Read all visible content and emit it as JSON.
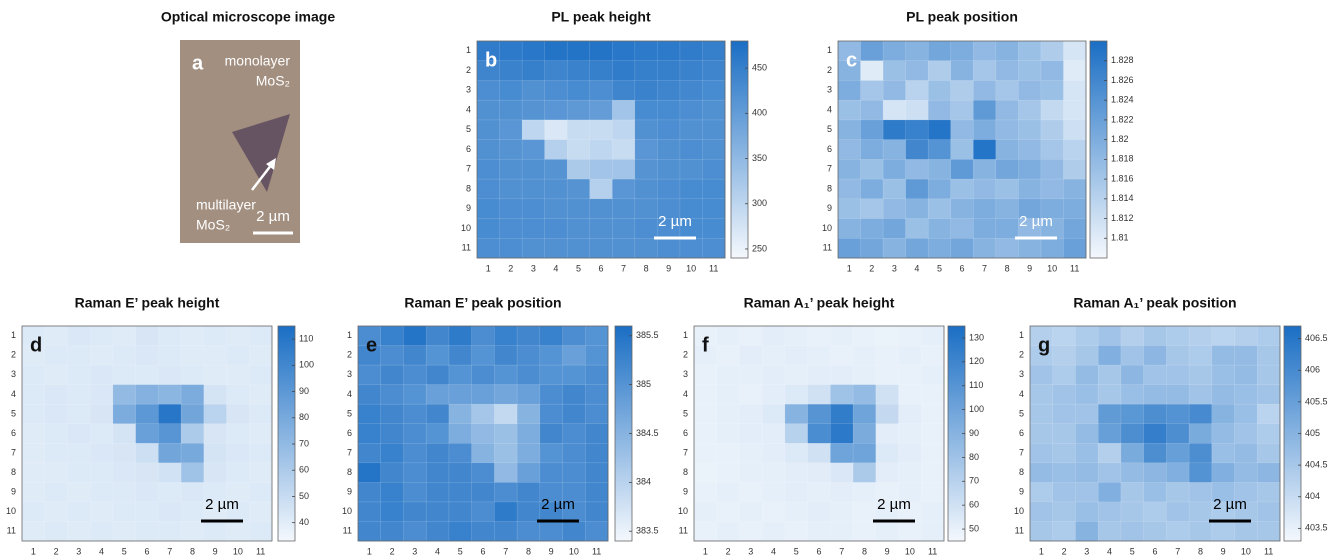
{
  "chart_data": [
    {
      "type": "image",
      "title": "Optical microscope image",
      "panel_label": "a",
      "annotations": [
        "monolayer",
        "MoS₂",
        "multilayer",
        "MoS₂"
      ],
      "scale_bar_label": "2 µm",
      "scale_bar_color": "#ffffff"
    },
    {
      "type": "heatmap",
      "title": "PL peak height",
      "panel_label": "b",
      "scale_bar_label": "2 µm",
      "scale_bar_color": "#ffffff",
      "colormap": [
        "#f4f8fd",
        "#1a6ec4"
      ],
      "x": [
        1,
        2,
        3,
        4,
        5,
        6,
        7,
        8,
        9,
        10,
        11
      ],
      "y": [
        1,
        2,
        3,
        4,
        5,
        6,
        7,
        8,
        9,
        10,
        11
      ],
      "zlim": [
        240,
        480
      ],
      "zticks": [
        250,
        300,
        350,
        400,
        450
      ],
      "z": [
        [
          455,
          460,
          465,
          470,
          470,
          470,
          465,
          460,
          460,
          455,
          450
        ],
        [
          440,
          445,
          450,
          440,
          445,
          450,
          455,
          450,
          450,
          445,
          440
        ],
        [
          425,
          430,
          420,
          425,
          430,
          425,
          440,
          445,
          440,
          435,
          430
        ],
        [
          420,
          420,
          415,
          410,
          405,
          400,
          330,
          430,
          430,
          425,
          420
        ],
        [
          420,
          410,
          300,
          270,
          290,
          290,
          300,
          420,
          425,
          420,
          420
        ],
        [
          420,
          415,
          410,
          310,
          290,
          300,
          290,
          410,
          420,
          425,
          420
        ],
        [
          425,
          420,
          420,
          415,
          320,
          330,
          330,
          415,
          420,
          420,
          425
        ],
        [
          425,
          420,
          420,
          420,
          415,
          310,
          410,
          420,
          425,
          430,
          430
        ],
        [
          430,
          425,
          425,
          420,
          420,
          420,
          420,
          420,
          425,
          430,
          430
        ],
        [
          430,
          425,
          425,
          425,
          420,
          420,
          420,
          425,
          425,
          430,
          430
        ],
        [
          425,
          425,
          420,
          420,
          420,
          420,
          420,
          420,
          425,
          425,
          425
        ]
      ]
    },
    {
      "type": "heatmap",
      "title": "PL peak position",
      "panel_label": "c",
      "scale_bar_label": "2 µm",
      "scale_bar_color": "#ffffff",
      "colormap": [
        "#f4f8fd",
        "#1a6ec4"
      ],
      "x": [
        1,
        2,
        3,
        4,
        5,
        6,
        7,
        8,
        9,
        10,
        11
      ],
      "y": [
        1,
        2,
        3,
        4,
        5,
        6,
        7,
        8,
        9,
        10,
        11
      ],
      "zlim": [
        1.808,
        1.83
      ],
      "zticks": [
        1.81,
        1.812,
        1.814,
        1.816,
        1.818,
        1.82,
        1.822,
        1.824,
        1.826,
        1.828
      ],
      "z": [
        [
          1.818,
          1.822,
          1.82,
          1.819,
          1.821,
          1.82,
          1.818,
          1.819,
          1.817,
          1.815,
          1.811
        ],
        [
          1.819,
          1.81,
          1.817,
          1.818,
          1.815,
          1.819,
          1.816,
          1.818,
          1.817,
          1.818,
          1.81
        ],
        [
          1.82,
          1.816,
          1.818,
          1.814,
          1.817,
          1.815,
          1.818,
          1.816,
          1.818,
          1.817,
          1.811
        ],
        [
          1.817,
          1.818,
          1.811,
          1.812,
          1.818,
          1.816,
          1.823,
          1.818,
          1.816,
          1.813,
          1.811
        ],
        [
          1.819,
          1.822,
          1.828,
          1.827,
          1.829,
          1.818,
          1.82,
          1.818,
          1.817,
          1.815,
          1.812
        ],
        [
          1.818,
          1.82,
          1.819,
          1.826,
          1.824,
          1.817,
          1.829,
          1.819,
          1.818,
          1.816,
          1.814
        ],
        [
          1.819,
          1.817,
          1.82,
          1.818,
          1.819,
          1.823,
          1.819,
          1.821,
          1.82,
          1.818,
          1.815
        ],
        [
          1.818,
          1.82,
          1.817,
          1.823,
          1.82,
          1.817,
          1.818,
          1.817,
          1.819,
          1.818,
          1.819
        ],
        [
          1.817,
          1.816,
          1.818,
          1.819,
          1.817,
          1.819,
          1.82,
          1.819,
          1.821,
          1.82,
          1.82
        ],
        [
          1.819,
          1.82,
          1.821,
          1.817,
          1.819,
          1.818,
          1.82,
          1.82,
          1.818,
          1.819,
          1.821
        ],
        [
          1.822,
          1.821,
          1.819,
          1.821,
          1.82,
          1.821,
          1.819,
          1.818,
          1.819,
          1.82,
          1.822
        ]
      ]
    },
    {
      "type": "heatmap",
      "title": "Raman E’ peak height",
      "panel_label": "d",
      "scale_bar_label": "2 µm",
      "scale_bar_color": "#000000",
      "colormap": [
        "#f4f8fd",
        "#1a6ec4"
      ],
      "x": [
        1,
        2,
        3,
        4,
        5,
        6,
        7,
        8,
        9,
        10,
        11
      ],
      "y": [
        1,
        2,
        3,
        4,
        5,
        6,
        7,
        8,
        9,
        10,
        11
      ],
      "zlim": [
        33,
        115
      ],
      "zticks": [
        40,
        50,
        60,
        70,
        80,
        90,
        100,
        110
      ],
      "z": [
        [
          42,
          41,
          43,
          42,
          41,
          44,
          42,
          41,
          42,
          41,
          42
        ],
        [
          41,
          42,
          42,
          41,
          42,
          43,
          42,
          41,
          41,
          42,
          41
        ],
        [
          42,
          41,
          42,
          43,
          42,
          42,
          43,
          42,
          41,
          41,
          42
        ],
        [
          42,
          43,
          42,
          43,
          70,
          75,
          72,
          78,
          45,
          42,
          41
        ],
        [
          42,
          43,
          42,
          44,
          78,
          90,
          110,
          82,
          55,
          44,
          42
        ],
        [
          41,
          42,
          43,
          42,
          45,
          85,
          92,
          60,
          44,
          42,
          41
        ],
        [
          41,
          42,
          42,
          43,
          44,
          48,
          82,
          80,
          45,
          43,
          42
        ],
        [
          41,
          41,
          42,
          42,
          43,
          44,
          46,
          65,
          44,
          42,
          41
        ],
        [
          41,
          42,
          41,
          42,
          42,
          43,
          42,
          43,
          42,
          41,
          42
        ],
        [
          42,
          41,
          42,
          41,
          42,
          42,
          43,
          42,
          41,
          42,
          41
        ],
        [
          41,
          42,
          41,
          42,
          41,
          42,
          42,
          41,
          42,
          41,
          42
        ]
      ]
    },
    {
      "type": "heatmap",
      "title": "Raman E’ peak position",
      "panel_label": "e",
      "scale_bar_label": "2 µm",
      "scale_bar_color": "#000000",
      "colormap": [
        "#f4f8fd",
        "#1a6ec4"
      ],
      "x": [
        1,
        2,
        3,
        4,
        5,
        6,
        7,
        8,
        9,
        10,
        11
      ],
      "y": [
        1,
        2,
        3,
        4,
        5,
        6,
        7,
        8,
        9,
        10,
        11
      ],
      "zlim": [
        383.4,
        385.6
      ],
      "zticks": [
        383.5,
        384,
        384.5,
        385,
        385.5
      ],
      "z": [
        [
          385.1,
          385.3,
          385.5,
          385.2,
          385.4,
          385.1,
          385.3,
          385.2,
          385.3,
          385.1,
          385.0
        ],
        [
          385.2,
          385.1,
          385.2,
          385.0,
          385.2,
          385.0,
          385.2,
          385.1,
          385.0,
          384.8,
          385.0
        ],
        [
          385.1,
          385.2,
          385.1,
          385.2,
          385.0,
          385.1,
          385.0,
          385.1,
          385.0,
          385.0,
          385.1
        ],
        [
          385.2,
          385.1,
          385.0,
          384.8,
          384.8,
          384.8,
          384.7,
          384.8,
          385.1,
          385.2,
          385.1
        ],
        [
          385.3,
          385.2,
          385.1,
          385.2,
          384.5,
          384.2,
          383.9,
          384.5,
          385.1,
          385.2,
          385.1
        ],
        [
          385.3,
          385.2,
          385.1,
          385.0,
          384.6,
          384.4,
          384.3,
          384.6,
          385.2,
          385.1,
          385.2
        ],
        [
          385.2,
          385.3,
          385.1,
          385.2,
          385.1,
          384.5,
          384.3,
          384.6,
          385.0,
          385.1,
          385.2
        ],
        [
          385.5,
          385.2,
          385.1,
          385.2,
          385.2,
          385.1,
          384.4,
          384.8,
          385.1,
          385.1,
          385.2
        ],
        [
          385.2,
          385.3,
          385.1,
          385.2,
          385.2,
          385.2,
          385.1,
          385.2,
          385.1,
          385.1,
          385.2
        ],
        [
          385.2,
          385.3,
          385.2,
          385.2,
          385.2,
          385.1,
          385.4,
          385.2,
          385.2,
          385.1,
          385.2
        ],
        [
          385.2,
          385.2,
          385.1,
          385.2,
          385.3,
          385.2,
          385.2,
          385.1,
          385.1,
          385.2,
          385.1
        ]
      ]
    },
    {
      "type": "heatmap",
      "title": "Raman A₁’ peak height",
      "panel_label": "f",
      "scale_bar_label": "2 µm",
      "scale_bar_color": "#000000",
      "colormap": [
        "#f4f8fd",
        "#1a6ec4"
      ],
      "x": [
        1,
        2,
        3,
        4,
        5,
        6,
        7,
        8,
        9,
        10,
        11
      ],
      "y": [
        1,
        2,
        3,
        4,
        5,
        6,
        7,
        8,
        9,
        10,
        11
      ],
      "zlim": [
        45,
        135
      ],
      "zticks": [
        50,
        60,
        70,
        80,
        90,
        100,
        110,
        120,
        130
      ],
      "z": [
        [
          50,
          51,
          50,
          52,
          51,
          50,
          51,
          50,
          49,
          50,
          51
        ],
        [
          51,
          50,
          52,
          51,
          52,
          51,
          50,
          51,
          50,
          51,
          50
        ],
        [
          50,
          51,
          51,
          52,
          51,
          52,
          52,
          51,
          50,
          50,
          51
        ],
        [
          50,
          51,
          50,
          52,
          55,
          60,
          80,
          85,
          60,
          50,
          50
        ],
        [
          50,
          51,
          52,
          55,
          90,
          110,
          125,
          100,
          65,
          52,
          50
        ],
        [
          50,
          51,
          52,
          52,
          70,
          115,
          128,
          95,
          52,
          51,
          50
        ],
        [
          50,
          50,
          51,
          52,
          55,
          60,
          100,
          100,
          55,
          52,
          50
        ],
        [
          49,
          50,
          51,
          51,
          52,
          53,
          56,
          75,
          52,
          51,
          50
        ],
        [
          50,
          51,
          50,
          51,
          52,
          51,
          52,
          51,
          50,
          51,
          50
        ],
        [
          51,
          50,
          51,
          50,
          51,
          52,
          51,
          50,
          51,
          50,
          51
        ],
        [
          50,
          51,
          50,
          51,
          50,
          51,
          51,
          50,
          51,
          50,
          51
        ]
      ]
    },
    {
      "type": "heatmap",
      "title": "Raman A₁’ peak position",
      "panel_label": "g",
      "scale_bar_label": "2 µm",
      "scale_bar_color": "#000000",
      "colormap": [
        "#f4f8fd",
        "#1a6ec4"
      ],
      "x": [
        1,
        2,
        3,
        4,
        5,
        6,
        7,
        8,
        9,
        10,
        11
      ],
      "y": [
        1,
        2,
        3,
        4,
        5,
        6,
        7,
        8,
        9,
        10,
        11
      ],
      "zlim": [
        403.3,
        406.7
      ],
      "zticks": [
        403.5,
        404,
        404.5,
        405,
        405.5,
        406,
        406.5
      ],
      "z": [
        [
          404.3,
          404.2,
          404.4,
          404.6,
          404.3,
          404.5,
          404.4,
          404.3,
          404.2,
          404.3,
          404.4
        ],
        [
          404.4,
          404.3,
          404.5,
          405.1,
          404.6,
          404.9,
          404.5,
          404.4,
          404.8,
          404.8,
          404.5
        ],
        [
          404.6,
          404.4,
          404.8,
          404.5,
          404.9,
          404.6,
          404.6,
          404.5,
          404.7,
          404.8,
          404.5
        ],
        [
          404.5,
          404.6,
          404.7,
          404.5,
          404.7,
          404.8,
          404.8,
          404.6,
          404.8,
          404.7,
          404.6
        ],
        [
          404.5,
          404.6,
          404.6,
          405.6,
          405.7,
          405.9,
          405.8,
          406.0,
          405.0,
          404.7,
          404.2
        ],
        [
          404.5,
          404.5,
          404.8,
          405.5,
          405.9,
          406.3,
          405.9,
          405.2,
          404.8,
          404.6,
          404.4
        ],
        [
          404.6,
          404.5,
          404.7,
          404.3,
          405.2,
          405.9,
          405.5,
          405.9,
          404.7,
          404.8,
          404.5
        ],
        [
          404.8,
          404.7,
          404.8,
          404.6,
          404.8,
          404.9,
          405.1,
          405.8,
          405.1,
          404.8,
          404.9
        ],
        [
          404.4,
          404.6,
          404.6,
          405.1,
          404.5,
          404.7,
          404.5,
          404.6,
          404.7,
          404.6,
          404.5
        ],
        [
          404.6,
          404.5,
          404.7,
          404.6,
          404.5,
          404.4,
          404.6,
          404.5,
          404.4,
          404.5,
          404.6
        ],
        [
          404.5,
          404.4,
          405.0,
          404.5,
          404.6,
          404.5,
          404.4,
          404.5,
          404.4,
          404.5,
          404.5
        ]
      ]
    }
  ]
}
